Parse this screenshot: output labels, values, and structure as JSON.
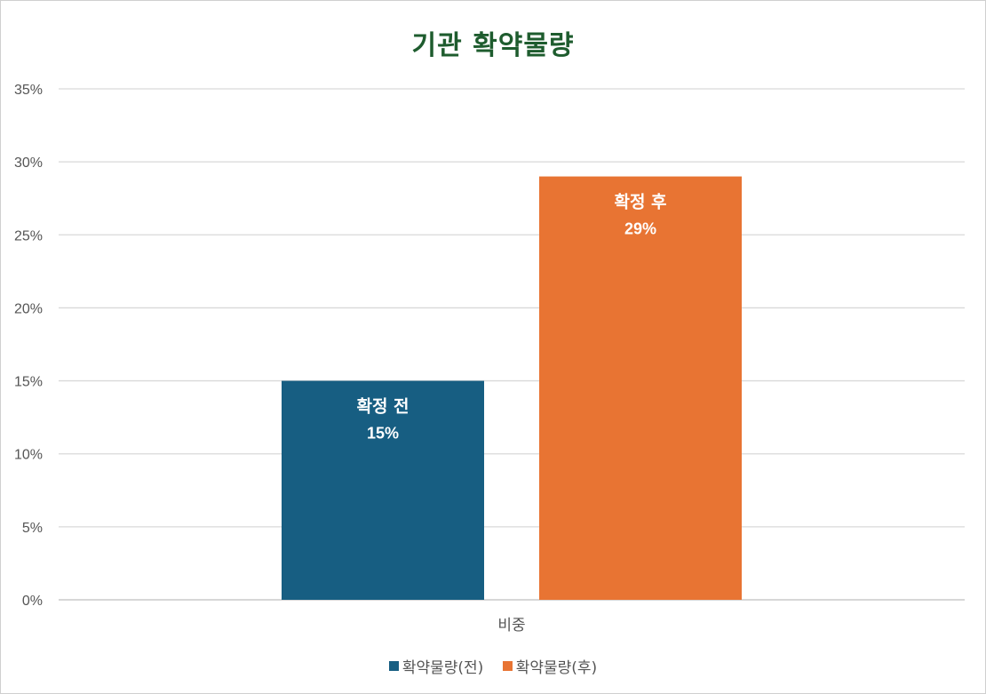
{
  "chart_data": {
    "type": "bar",
    "title": "기관 확약물량",
    "categories": [
      "비중"
    ],
    "series": [
      {
        "name": "확약물량(전)",
        "label": "확정 전",
        "values": [
          15
        ],
        "value_label": "15%",
        "color": "#175e82"
      },
      {
        "name": "확약물량(후)",
        "label": "확정 후",
        "values": [
          29
        ],
        "value_label": "29%",
        "color": "#e87433"
      }
    ],
    "ylim": [
      0,
      35
    ],
    "yticks": [
      "0%",
      "5%",
      "10%",
      "15%",
      "20%",
      "25%",
      "30%",
      "35%"
    ],
    "grid": true,
    "legend": "bottom",
    "title_color": "#1e5c2e",
    "gridline_color": "#d9d9d9"
  }
}
